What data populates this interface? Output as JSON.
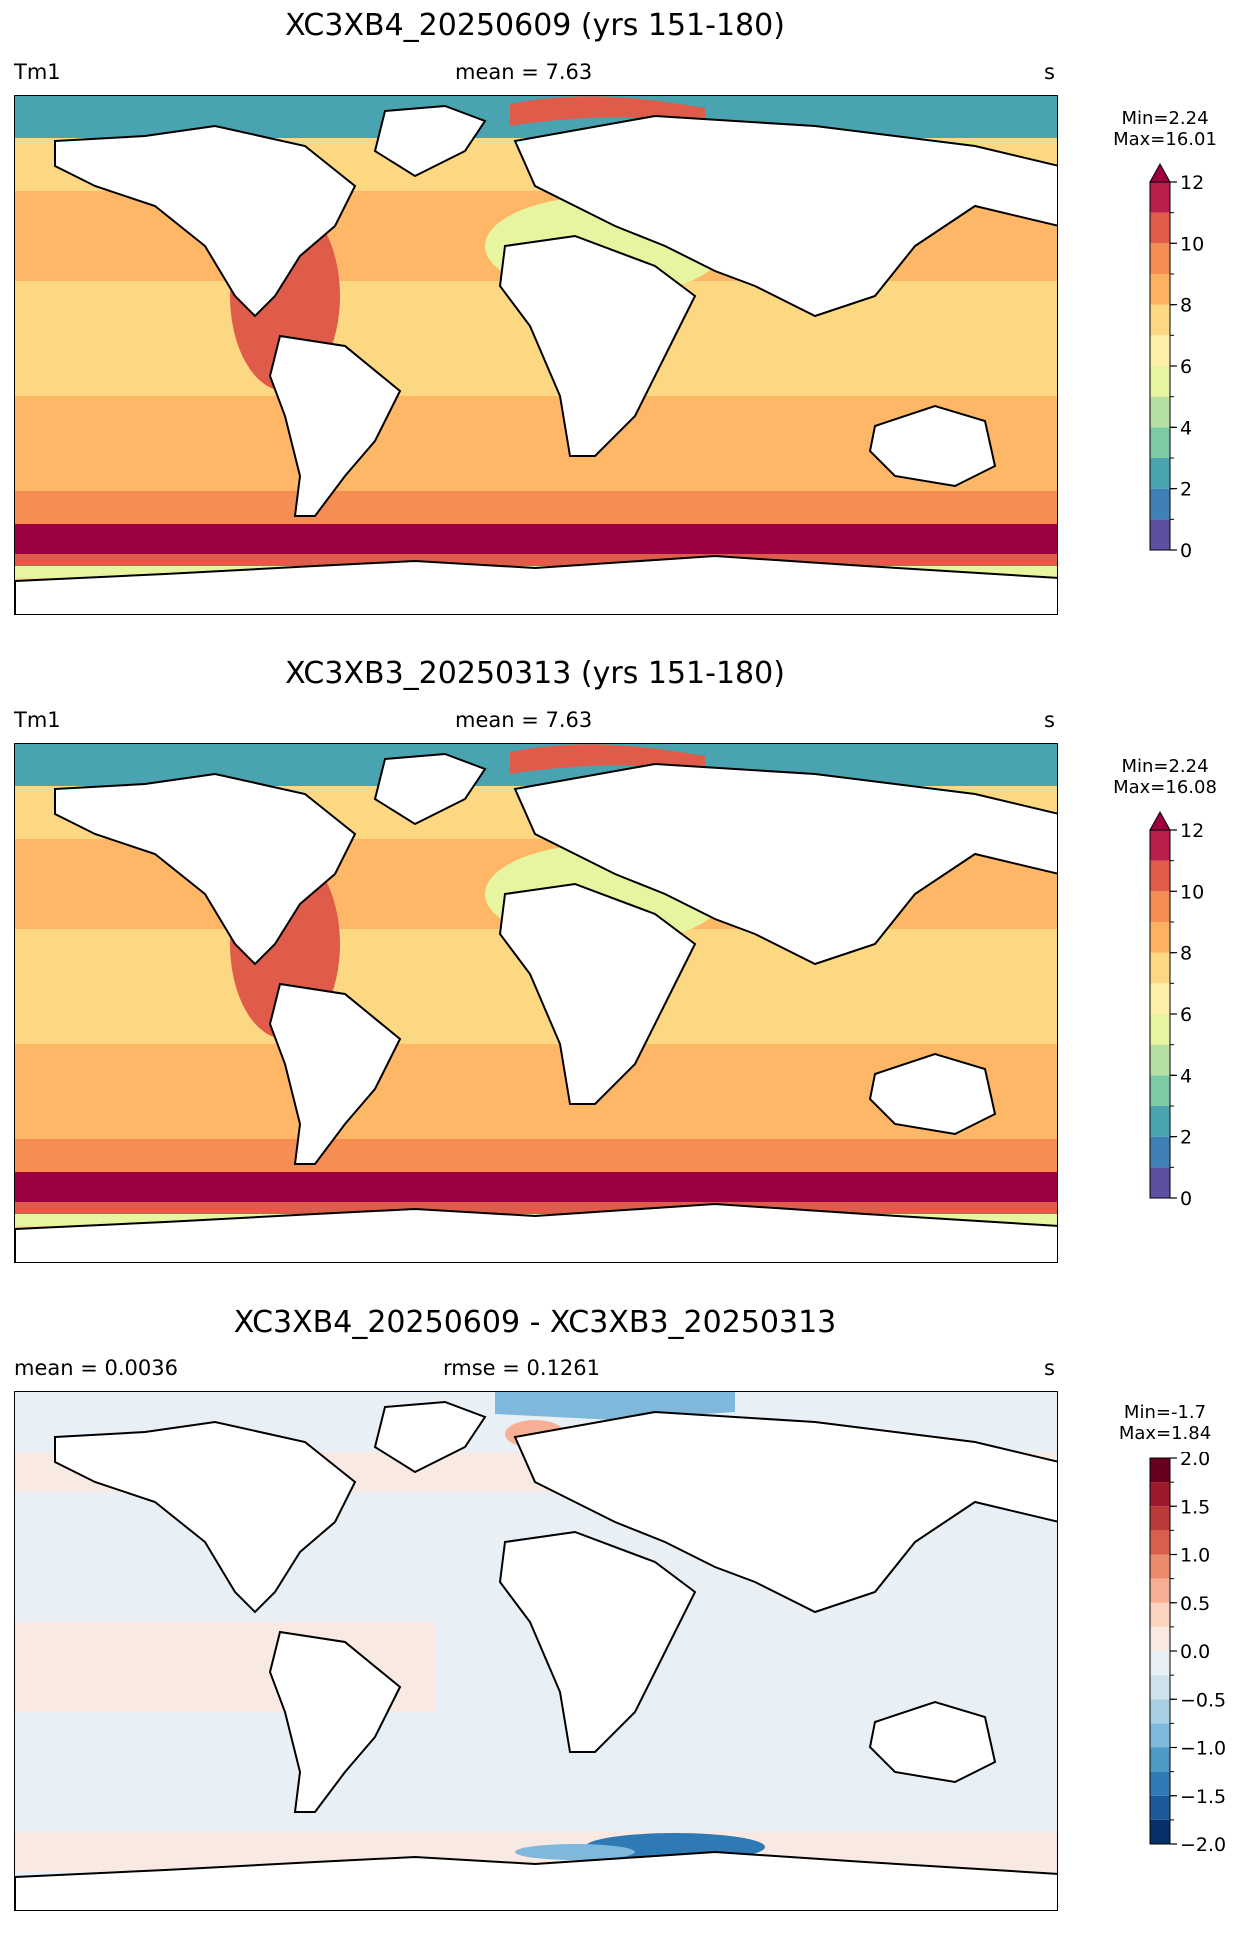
{
  "panels": [
    {
      "title": "XC3XB4_20250609 (yrs 151-180)",
      "left_label": "Tm1",
      "center_label": "mean = 7.63",
      "units": "s",
      "stats": {
        "min": "Min=2.24",
        "max": "Max=16.01"
      }
    },
    {
      "title": "XC3XB3_20250313 (yrs 151-180)",
      "left_label": "Tm1",
      "center_label": "mean = 7.63",
      "units": "s",
      "stats": {
        "min": "Min=2.24",
        "max": "Max=16.08"
      }
    },
    {
      "title": "XC3XB4_20250609 - XC3XB3_20250313",
      "left_label": "mean = 0.0036",
      "center_label": "rmse = 0.1261",
      "units": "s",
      "stats": {
        "min": "Min=-1.7",
        "max": "Max=1.84"
      }
    }
  ],
  "chart_data": [
    {
      "type": "heatmap",
      "title": "XC3XB4_20250609 (yrs 151-180)",
      "variable": "Tm1",
      "units": "s",
      "mean": 7.63,
      "min": 2.24,
      "max": 16.01,
      "colormap": "RdYlBu_r (Spectral)",
      "colorbar": {
        "range": [
          0,
          12
        ],
        "extend": "max",
        "ticks": [
          "0",
          "2",
          "4",
          "6",
          "8",
          "10",
          "12"
        ],
        "levels": [
          0,
          1,
          2,
          3,
          4,
          5,
          6,
          7,
          8,
          9,
          10,
          11,
          12
        ],
        "colors": [
          "#5e4fa2",
          "#3f80b8",
          "#4aa3b0",
          "#7ccba4",
          "#b5e0a2",
          "#e7f5a0",
          "#fdf0a6",
          "#fdd883",
          "#fdb262",
          "#f68d53",
          "#e05c4a",
          "#b91f48"
        ],
        "over_color": "#9e0142"
      }
    },
    {
      "type": "heatmap",
      "title": "XC3XB3_20250313 (yrs 151-180)",
      "variable": "Tm1",
      "units": "s",
      "mean": 7.63,
      "min": 2.24,
      "max": 16.08,
      "colormap": "RdYlBu_r (Spectral)",
      "colorbar": {
        "range": [
          0,
          12
        ],
        "extend": "max",
        "ticks": [
          "0",
          "2",
          "4",
          "6",
          "8",
          "10",
          "12"
        ],
        "levels": [
          0,
          1,
          2,
          3,
          4,
          5,
          6,
          7,
          8,
          9,
          10,
          11,
          12
        ],
        "colors": [
          "#5e4fa2",
          "#3f80b8",
          "#4aa3b0",
          "#7ccba4",
          "#b5e0a2",
          "#e7f5a0",
          "#fdf0a6",
          "#fdd883",
          "#fdb262",
          "#f68d53",
          "#e05c4a",
          "#b91f48"
        ],
        "over_color": "#9e0142"
      }
    },
    {
      "type": "heatmap",
      "title": "XC3XB4_20250609 - XC3XB3_20250313",
      "units": "s",
      "mean": 0.0036,
      "rmse": 0.1261,
      "min": -1.7,
      "max": 1.84,
      "colormap": "RdBu_r",
      "colorbar": {
        "range": [
          -2.0,
          2.0
        ],
        "ticks": [
          "−2.0",
          "−1.5",
          "−1.0",
          "−0.5",
          "0.0",
          "0.5",
          "1.0",
          "1.5",
          "2.0"
        ],
        "levels": [
          -2.0,
          -1.75,
          -1.5,
          -1.25,
          -1.0,
          -0.75,
          -0.5,
          -0.25,
          0.0,
          0.25,
          0.5,
          0.75,
          1.0,
          1.25,
          1.5,
          1.75,
          2.0
        ],
        "colors": [
          "#08306b",
          "#1b5a9b",
          "#2f79b5",
          "#4e9ac6",
          "#7fb8da",
          "#a8d0e4",
          "#cfe3ef",
          "#e8f0f5",
          "#f8eae3",
          "#fbd3c0",
          "#f7b096",
          "#ec8a6e",
          "#d6604d",
          "#bb3a3a",
          "#9b1a2b",
          "#67001f"
        ]
      }
    }
  ]
}
